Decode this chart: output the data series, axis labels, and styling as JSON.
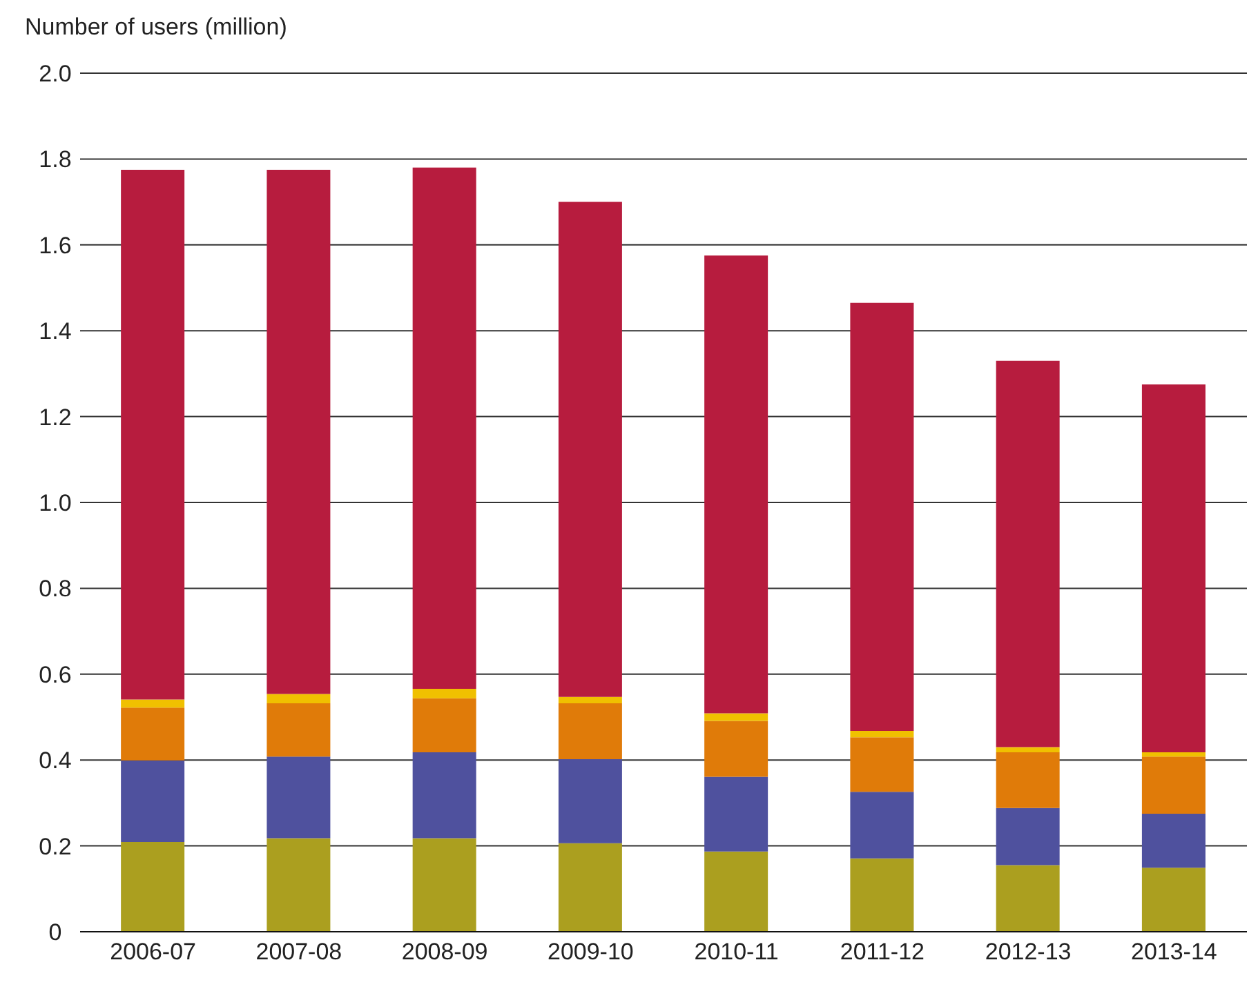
{
  "chart_data": {
    "type": "bar",
    "ylabel": "Number of users (million)",
    "categories": [
      "2006-07",
      "2007-08",
      "2008-09",
      "2009-10",
      "2010-11",
      "2011-12",
      "2012-13",
      "2013-14"
    ],
    "stacked": true,
    "grid": "y",
    "ylim": [
      0,
      2.0
    ],
    "yticks": [
      {
        "value": 0,
        "label": "0"
      },
      0.2,
      0.4,
      0.6,
      0.8,
      {
        "value": 1,
        "label": "1.0"
      },
      1.2,
      1.4,
      1.6,
      1.8,
      {
        "value": 2,
        "label": "2.0"
      }
    ],
    "series": [
      {
        "color": "#ab9f1f",
        "values": [
          0.209,
          0.218,
          0.218,
          0.206,
          0.187,
          0.171,
          0.155,
          0.149
        ]
      },
      {
        "color": "#4f519e",
        "values": [
          0.19,
          0.19,
          0.2,
          0.196,
          0.174,
          0.155,
          0.133,
          0.126
        ]
      },
      {
        "color": "#e07b09",
        "values": [
          0.123,
          0.124,
          0.126,
          0.13,
          0.13,
          0.127,
          0.13,
          0.133
        ]
      },
      {
        "color": "#f0c000",
        "values": [
          0.019,
          0.022,
          0.022,
          0.015,
          0.018,
          0.015,
          0.012,
          0.01
        ]
      },
      {
        "color": "#b71c3e",
        "values": [
          1.234,
          1.221,
          1.214,
          1.153,
          1.066,
          0.997,
          0.9,
          0.857
        ]
      }
    ]
  }
}
